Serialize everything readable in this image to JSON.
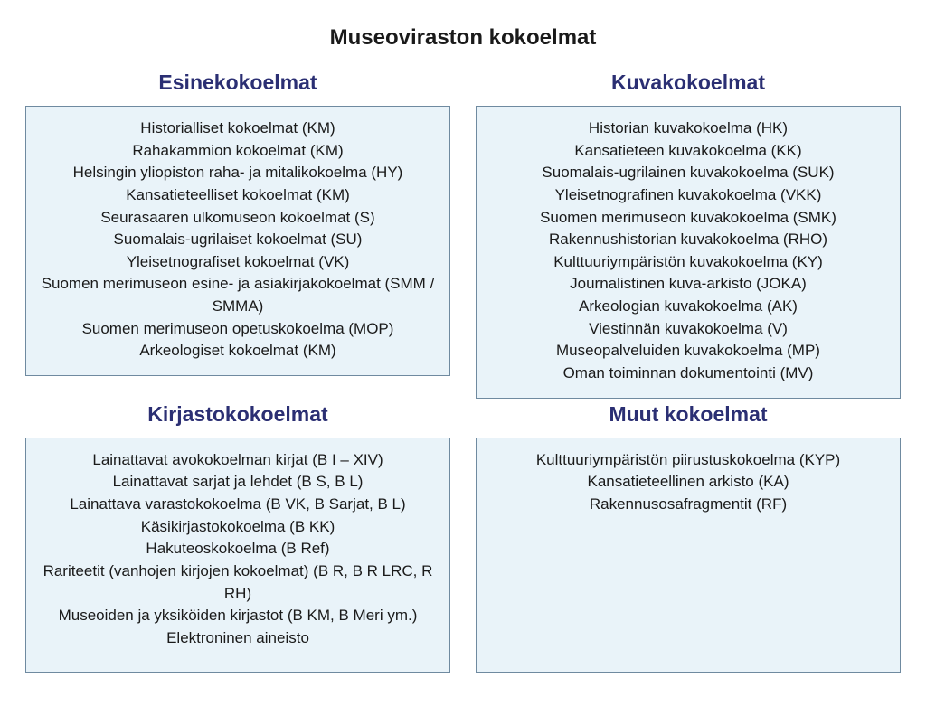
{
  "colors": {
    "heading": "#2b2f73",
    "box_bg": "#e9f3f9",
    "box_border": "#6f8aa0",
    "text": "#1a1a1a",
    "page_bg": "#ffffff"
  },
  "fonts": {
    "main_title_size": 24,
    "section_title_size": 23,
    "item_size": 17,
    "family": "Arial"
  },
  "main_title": "Museoviraston kokoelmat",
  "sections": [
    {
      "title": "Esinekokoelmat",
      "min_box_height": 290,
      "items": [
        "Historialliset kokoelmat (KM)",
        "Rahakammion kokoelmat (KM)",
        "Helsingin yliopiston raha- ja mitalikokoelma (HY)",
        "Kansatieteelliset kokoelmat (KM)",
        "Seurasaaren ulkomuseon kokoelmat (S)",
        "Suomalais-ugrilaiset kokoelmat (SU)",
        "Yleisetnografiset kokoelmat (VK)",
        "Suomen merimuseon esine- ja asiakirjakokoelmat (SMM / SMMA)",
        "Suomen merimuseon opetuskokoelma (MOP)",
        "Arkeologiset kokoelmat (KM)"
      ]
    },
    {
      "title": "Kuvakokoelmat",
      "min_box_height": 290,
      "items": [
        "Historian kuvakokoelma (HK)",
        "Kansatieteen kuvakokoelma (KK)",
        "Suomalais-ugrilainen kuvakokoelma (SUK)",
        "Yleisetnografinen kuvakokoelma (VKK)",
        "Suomen merimuseon kuvakokoelma (SMK)",
        "Rakennushistorian kuvakokoelma (RHO)",
        "Kulttuuriympäristön kuvakokoelma (KY)",
        "Journalistinen kuva-arkisto (JOKA)",
        "Arkeologian kuvakokoelma (AK)",
        "Viestinnän kuvakokoelma (V)",
        "Museopalveluiden kuvakokoelma (MP)",
        "Oman toiminnan dokumentointi (MV)"
      ]
    },
    {
      "title": "Kirjastokokoelmat",
      "min_box_height": 260,
      "items": [
        "Lainattavat avokokoelman kirjat (B I – XIV)",
        "Lainattavat sarjat ja lehdet (B S, B L)",
        "Lainattava varastokokoelma (B VK, B Sarjat, B L)",
        "Käsikirjastokokoelma (B KK)",
        "Hakuteoskokoelma (B Ref)",
        "Rariteetit (vanhojen kirjojen kokoelmat) (B R, B R LRC, R RH)",
        "Museoiden ja yksiköiden kirjastot (B KM, B Meri ym.)",
        "Elektroninen aineisto"
      ]
    },
    {
      "title": "Muut kokoelmat",
      "min_box_height": 260,
      "items": [
        "Kulttuuriympäristön piirustuskokoelma (KYP)",
        "Kansatieteellinen arkisto (KA)",
        "Rakennusosafragmentit (RF)"
      ]
    }
  ]
}
